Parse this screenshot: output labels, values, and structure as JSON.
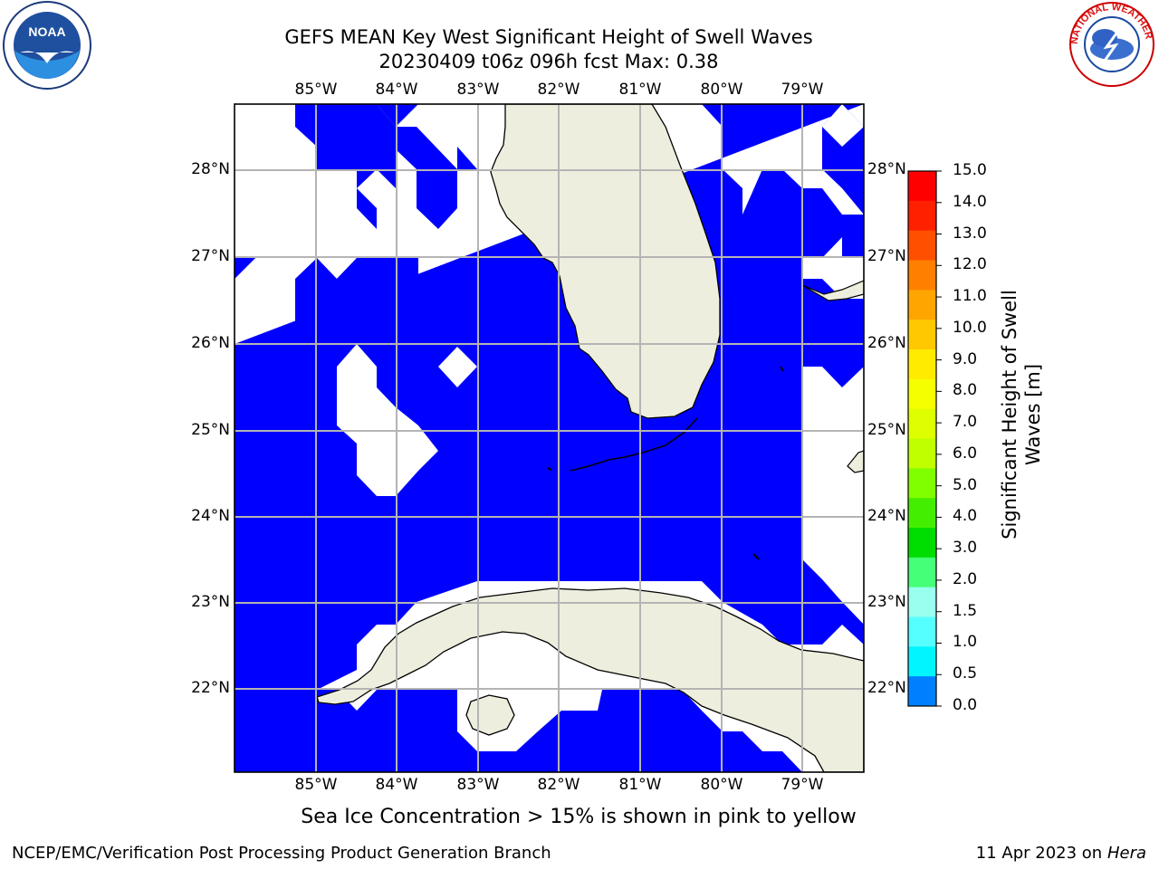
{
  "title_line1": "GEFS MEAN Key West Significant Height of Swell Waves",
  "title_line2": "20230409 t06z 096h fcst   Max: 0.38",
  "lon_labels": [
    "85°W",
    "84°W",
    "83°W",
    "82°W",
    "81°W",
    "80°W",
    "79°W"
  ],
  "lat_labels": [
    "28°N",
    "27°N",
    "26°N",
    "25°N",
    "24°N",
    "23°N",
    "22°N"
  ],
  "colorbar": {
    "label_line1": "Significant Height of Swell",
    "label_line2": "Waves [m]",
    "ticks": [
      "15.0",
      "14.0",
      "13.0",
      "12.0",
      "11.0",
      "10.0",
      "9.0",
      "8.0",
      "7.0",
      "6.0",
      "5.0",
      "4.0",
      "3.0",
      "2.0",
      "1.5",
      "1.0",
      "0.5",
      "0.0"
    ],
    "colors": [
      "#ff0000",
      "#ff2000",
      "#ff5000",
      "#ff8000",
      "#ffa500",
      "#ffc800",
      "#ffeb00",
      "#f5ff00",
      "#ddff00",
      "#c0ff00",
      "#80ff00",
      "#44ee00",
      "#00dd00",
      "#44ff77",
      "#99ffee",
      "#55ffff",
      "#00f5ff",
      "#0080ff",
      "#0000ff"
    ]
  },
  "colors": {
    "wave_fill": "#0000ff",
    "land": "#eeeedf",
    "grid": "#b4b4b4"
  },
  "note": "Sea Ice Concentration > 15% is shown in pink to yellow",
  "footer_left": "NCEP/EMC/Verification Post Processing Product Generation Branch",
  "footer_right_date": "11 Apr 2023 on",
  "footer_right_host": "Hera",
  "logos": {
    "noaa_text": "NOAA",
    "nws_text": "NATIONAL WEATHER SERVICE"
  }
}
